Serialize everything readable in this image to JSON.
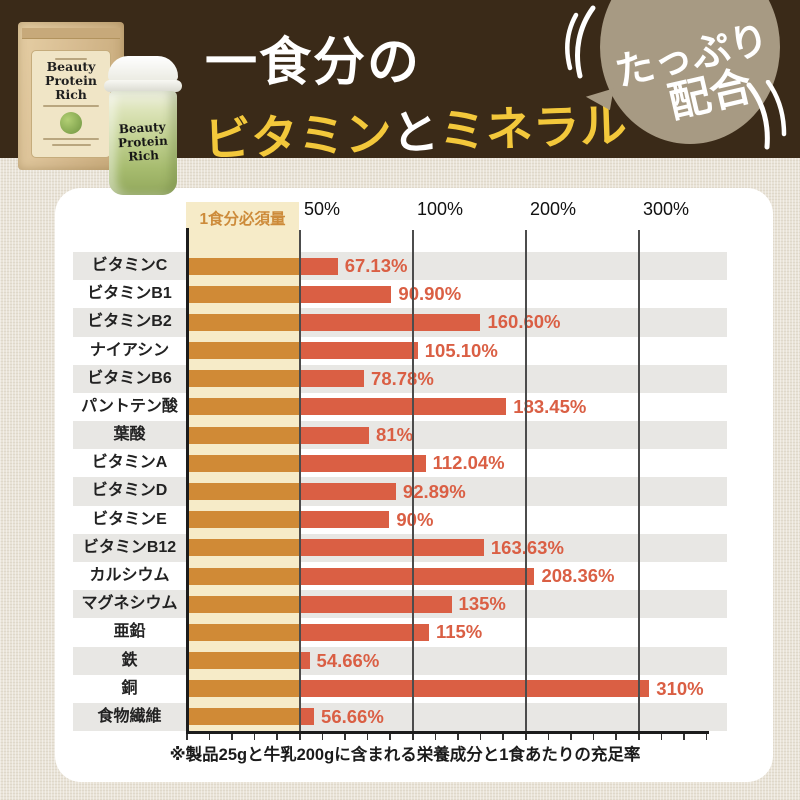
{
  "header": {
    "title_line1": "一食分の",
    "title_vitamin": "ビタミン",
    "title_and": "と",
    "title_mineral": "ミネラル",
    "badge_line1": "たっぷり",
    "badge_line2": "配合"
  },
  "products": {
    "bag_brand": "Beauty\nProtein\nRich",
    "shaker_brand": "Beauty\nProtein\nRich"
  },
  "colors": {
    "header_bg": "#3a2a18",
    "badge_bg": "#a79a83",
    "title_yellow": "#f3c83b",
    "bar_within_requirement": "#d08a36",
    "bar_excess": "#da5f44",
    "value_text": "#da5f44",
    "requirement_band": "#f6ebc8",
    "requirement_label_text": "#cd8b3a",
    "row_stripe": "#e8e7e4",
    "page_bg": "#e9e3d7",
    "card_bg": "#ffffff"
  },
  "chart_data": {
    "type": "bar",
    "orientation": "horizontal",
    "title": "一食分のビタミンとミネラル",
    "region_label": "1食分必須量",
    "x_ticks": [
      {
        "label": "50%",
        "value": 50
      },
      {
        "label": "100%",
        "value": 100
      },
      {
        "label": "200%",
        "value": 200
      },
      {
        "label": "300%",
        "value": 300
      }
    ],
    "x_scale_note": "non-linear axis: equal pixel spacing between 0, 50, 100, 200 and 300 % ticks; shaded band spans 0–50%",
    "grid": true,
    "categories": [
      "ビタミンC",
      "ビタミンB1",
      "ビタミンB2",
      "ナイアシン",
      "ビタミンB6",
      "パントテン酸",
      "葉酸",
      "ビタミンA",
      "ビタミンD",
      "ビタミンE",
      "ビタミンB12",
      "カルシウム",
      "マグネシウム",
      "亜鉛",
      "鉄",
      "銅",
      "食物繊維"
    ],
    "values": [
      67.13,
      90.9,
      160.6,
      105.1,
      78.78,
      183.45,
      81,
      112.04,
      92.89,
      90,
      163.63,
      208.36,
      135,
      115,
      54.66,
      310,
      56.66
    ],
    "value_labels": [
      "67.13%",
      "90.90%",
      "160.60%",
      "105.10%",
      "78.78%",
      "183.45%",
      "81%",
      "112.04%",
      "92.89%",
      "90%",
      "163.63%",
      "208.36%",
      "135%",
      "115%",
      "54.66%",
      "310%",
      "56.66%"
    ]
  },
  "footnote": "※製品25gと牛乳200gに含まれる栄養成分と1食あたりの充足率"
}
